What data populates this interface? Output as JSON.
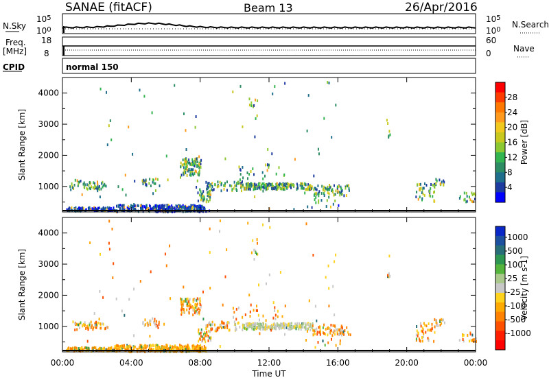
{
  "header": {
    "radar": "SANAE (fitACF)",
    "beam": "Beam 13",
    "date": "26/Apr/2016"
  },
  "panels": {
    "nsky_label": "N.Sky",
    "nsearch_label": "N.Search",
    "freq_label_1": "Freq.",
    "freq_label_2": "[MHz]",
    "nave_label": "Nave",
    "cpid_label": "CPID",
    "cpid_value": "normal 150",
    "noise_ticks_left": [
      "10^5",
      "10^0"
    ],
    "noise_ticks_right": [
      "10^5",
      "10^0"
    ],
    "freq_ticks": [
      "18",
      "8"
    ],
    "nave_ticks": [
      "60",
      "0"
    ]
  },
  "chart_data": [
    {
      "type": "heatmap",
      "name": "Power",
      "ylabel": "Slant Range [km]",
      "colorbar_label": "Power [dB]",
      "colorbar_ticks": [
        "28",
        "24",
        "20",
        "16",
        "12",
        "8",
        "4"
      ],
      "colorbar_colors": [
        "#ff0000",
        "#ff3c00",
        "#ff7800",
        "#ff9a1e",
        "#f0c81e",
        "#c8c81e",
        "#8cc832",
        "#32b450",
        "#2d8c64",
        "#1e6e8c",
        "#1e3ca0",
        "#0000ff"
      ],
      "ylim": [
        180,
        4500
      ],
      "yticks": [
        "1000",
        "2000",
        "3000",
        "4000"
      ]
    },
    {
      "type": "heatmap",
      "name": "Velocity",
      "ylabel": "Slant Range [km]",
      "colorbar_label": "Velocity [m s-1]",
      "colorbar_ticks": [
        "1000",
        "500",
        "100",
        "25",
        "-25",
        "-100",
        "-500",
        "-1000"
      ],
      "colorbar_colors": [
        "#0a28c8",
        "#1e50a0",
        "#286e78",
        "#2d9650",
        "#55b43c",
        "#aac88c",
        "#c8c8c8",
        "#ffd21e",
        "#ffaa00",
        "#ff8200",
        "#ff5000",
        "#ff1e00",
        "#ff0000"
      ],
      "ylim": [
        180,
        4500
      ],
      "yticks": [
        "1000",
        "2000",
        "3000",
        "4000"
      ]
    }
  ],
  "x_axis": {
    "label": "Time UT",
    "ticks": [
      "00:00",
      "04:00",
      "08:00",
      "12:00",
      "16:00",
      "20:00",
      "00:00"
    ]
  },
  "colors": {
    "frame": "#000000"
  }
}
